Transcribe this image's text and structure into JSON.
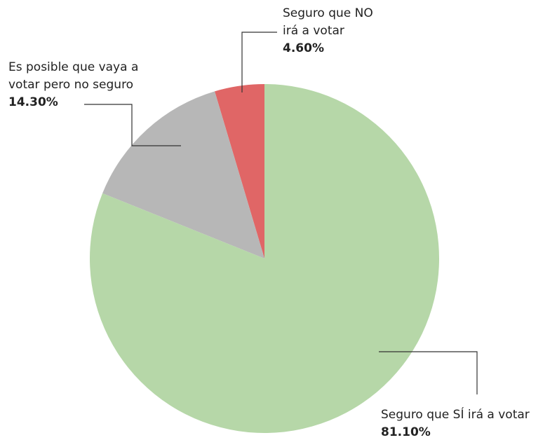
{
  "chart_data": {
    "type": "pie",
    "categories": [
      "Seguro que SÍ irá a votar",
      "Es posible que vaya a votar pero no seguro",
      "Seguro que NO irá a votar"
    ],
    "values": [
      81.1,
      14.3,
      4.6
    ],
    "value_labels": [
      "81.10%",
      "14.30%",
      "4.60%"
    ],
    "colors": [
      "#b6d7a8",
      "#b7b7b7",
      "#e06666"
    ]
  }
}
